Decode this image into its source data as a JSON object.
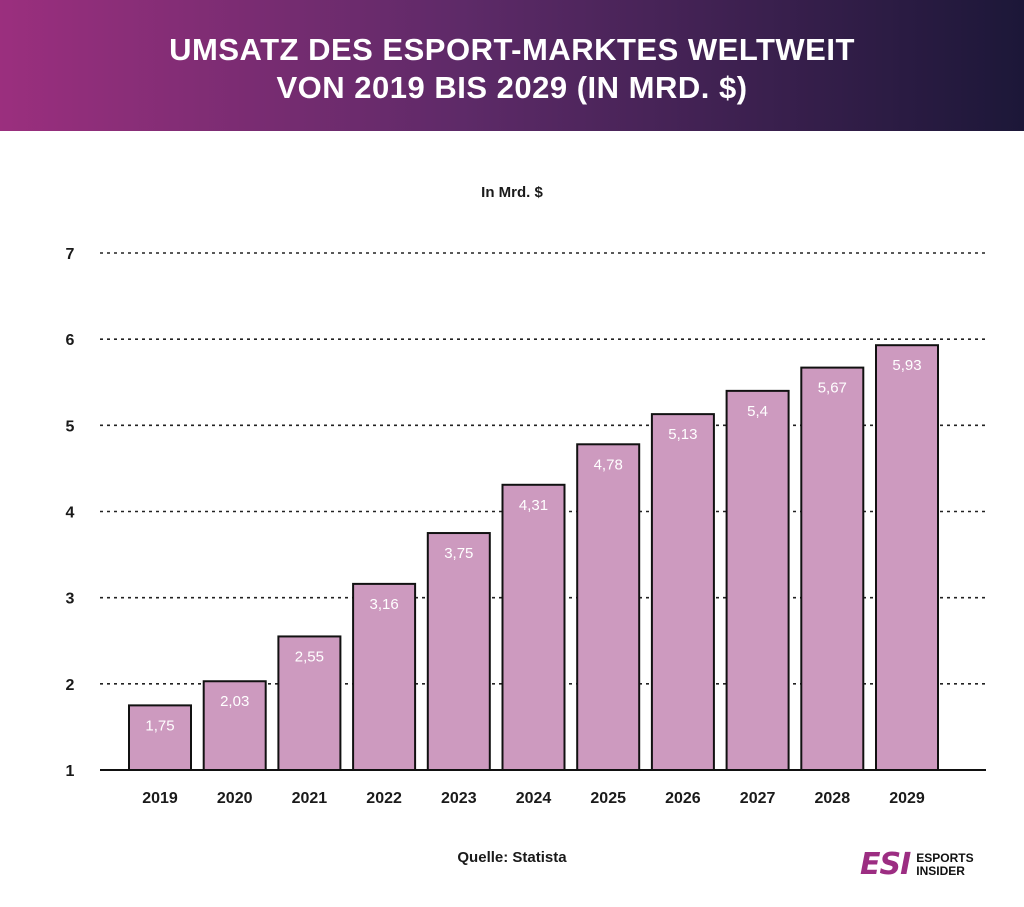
{
  "header": {
    "title_line1": "UMSATZ DES ESPORT-MARKTES WELTWEIT",
    "title_line2": "VON 2019 BIS 2029 (IN MRD. $)"
  },
  "footer": {
    "source": "Quelle: Statista",
    "logo_mark": "ESI",
    "logo_line1": "ESPORTS",
    "logo_line2": "INSIDER"
  },
  "chart_data": {
    "type": "bar",
    "title": "",
    "ylabel": "In Mrd. $",
    "xlabel": "",
    "ylim": [
      1,
      7
    ],
    "yticks": [
      "1",
      "2",
      "3",
      "4",
      "5",
      "6",
      "7"
    ],
    "grid": true,
    "categories": [
      "2019",
      "2020",
      "2021",
      "2022",
      "2023",
      "2024",
      "2025",
      "2026",
      "2027",
      "2028",
      "2029"
    ],
    "values": [
      1.75,
      2.03,
      2.55,
      3.16,
      3.75,
      4.31,
      4.78,
      5.13,
      5.4,
      5.67,
      5.93
    ],
    "value_labels": [
      "1,75",
      "2,03",
      "2,55",
      "3,16",
      "3,75",
      "4,31",
      "4,78",
      "5,13",
      "5,4",
      "5,67",
      "5,93"
    ],
    "bar_color": "#cd9abf",
    "bar_edge_color": "#111111"
  }
}
